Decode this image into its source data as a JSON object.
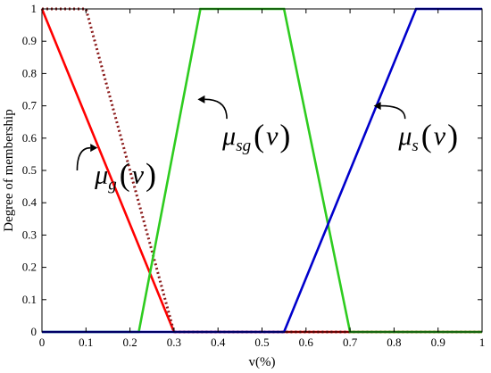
{
  "chart_data": {
    "type": "line",
    "xlabel": "v(%)",
    "ylabel": "Degree of membership",
    "xlim": [
      0,
      1
    ],
    "ylim": [
      0,
      1
    ],
    "xticks": [
      "0",
      "0.1",
      "0.2",
      "0.3",
      "0.4",
      "0.5",
      "0.6",
      "0.7",
      "0.8",
      "0.9",
      "1"
    ],
    "yticks": [
      "0",
      "0.1",
      "0.2",
      "0.3",
      "0.4",
      "0.5",
      "0.6",
      "0.7",
      "0.8",
      "0.9",
      "1"
    ],
    "grid": false,
    "series": [
      {
        "color": "#ff0000",
        "style": "solid",
        "x": [
          0,
          0.3,
          1
        ],
        "y": [
          1,
          0,
          0
        ]
      },
      {
        "color": "#8b1a1a",
        "style": "dotted",
        "x": [
          0,
          0.1,
          0.3,
          1
        ],
        "y": [
          1,
          1,
          0,
          0
        ]
      },
      {
        "color": "#2ecc1f",
        "style": "solid",
        "x": [
          0,
          0.22,
          0.36,
          0.55,
          0.7,
          1
        ],
        "y": [
          0,
          0,
          1,
          1,
          0,
          0
        ]
      },
      {
        "color": "#0000cc",
        "style": "solid",
        "x": [
          0,
          0.55,
          0.85,
          1
        ],
        "y": [
          0,
          0,
          1,
          1
        ]
      }
    ],
    "annotations": [
      {
        "base": "μ",
        "sub": "g",
        "arg": "v",
        "open": "(",
        "close": ")",
        "x": 0.12,
        "y": 0.46,
        "arrow_from": [
          0.08,
          0.5
        ],
        "arrow_to": [
          0.11,
          0.57
        ]
      },
      {
        "base": "μ",
        "sub": "sg",
        "arg": "v",
        "open": "(",
        "close": ")",
        "x": 0.41,
        "y": 0.58,
        "arrow_from": [
          0.42,
          0.66
        ],
        "arrow_to": [
          0.37,
          0.72
        ]
      },
      {
        "base": "μ",
        "sub": "s",
        "arg": "v",
        "open": "(",
        "close": ")",
        "x": 0.81,
        "y": 0.58,
        "arrow_from": [
          0.825,
          0.66
        ],
        "arrow_to": [
          0.77,
          0.7
        ]
      }
    ]
  }
}
